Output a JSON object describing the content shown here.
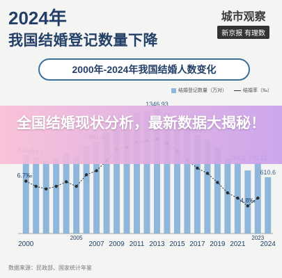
{
  "header": {
    "year": "2024年",
    "title": "我国结婚登记数量下降",
    "brand_name": "城市观察",
    "brand_logo": "新京报 有理数",
    "subtitle": "2000年-2024年我国结婚人数变化"
  },
  "overlay": {
    "text": "全国结婚现状分析，最新数据大揭秘！"
  },
  "source": "数据来源：民政部、国家统计年鉴",
  "colors": {
    "bar": "#8fb7db",
    "line": "#2b2b2b",
    "title": "#233f67",
    "overlay": "#f1b6d6"
  },
  "chart_data": {
    "type": "bar",
    "title": "2000年-2024年我国结婚人数变化",
    "x": [
      2000,
      2001,
      2002,
      2003,
      2004,
      2005,
      2006,
      2007,
      2008,
      2009,
      2010,
      2011,
      2012,
      2013,
      2014,
      2015,
      2016,
      2017,
      2018,
      2019,
      2020,
      2021,
      2022,
      2023,
      2024
    ],
    "tick_labels": [
      "2000",
      "2005",
      "2007",
      "2009",
      "2011",
      "2013",
      "2015",
      "2017",
      "2019",
      "2021",
      "2023",
      "2024"
    ],
    "series": [
      {
        "name": "结婚登记数量（万对）",
        "type": "bar",
        "values": [
          848.5,
          823.1,
          786.0,
          811.4,
          867.2,
          823.1,
          945.0,
          991.4,
          1098.3,
          1212.4,
          1241.0,
          1302.4,
          1323.6,
          1346.93,
          1306.7,
          1224.7,
          1142.8,
          1063.1,
          1013.9,
          927.3,
          814.3,
          764.3,
          683.5,
          768.21,
          610.6
        ]
      },
      {
        "name": "结婚率（‰）",
        "type": "line",
        "values": [
          6.7,
          6.3,
          6.1,
          6.3,
          6.65,
          6.3,
          7.19,
          7.5,
          8.27,
          9.1,
          9.3,
          9.7,
          9.8,
          9.92,
          9.6,
          9.0,
          8.3,
          7.7,
          7.3,
          6.6,
          5.8,
          5.4,
          4.8,
          5.4,
          null
        ]
      }
    ],
    "data_labels": [
      {
        "text": "848.5",
        "series": 0,
        "index": 0
      },
      {
        "text": "823.1",
        "series": 0,
        "index": 1
      },
      {
        "text": "991.4",
        "series": 0,
        "index": 7
      },
      {
        "text": "1346.93",
        "series": 0,
        "index": 13
      },
      {
        "text": "1063.1",
        "series": 0,
        "index": 17
      },
      {
        "text": "764.3",
        "series": 0,
        "index": 21
      },
      {
        "text": "768.21",
        "series": 0,
        "index": 23
      },
      {
        "text": "610.6",
        "series": 0,
        "index": 24
      },
      {
        "text": "6.7‰",
        "series": 1,
        "index": 0
      },
      {
        "text": "4.8‰",
        "series": 1,
        "index": 22
      }
    ],
    "ylim_bar": [
      0,
      1400
    ],
    "ylim_rate": [
      3,
      11
    ],
    "legend": "top-right",
    "grid": false
  }
}
